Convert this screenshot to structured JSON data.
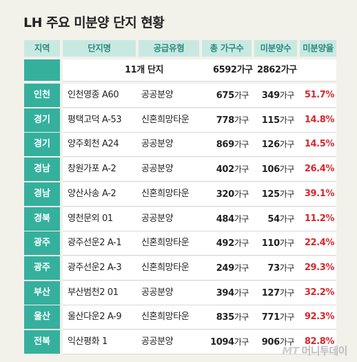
{
  "title": "LH 주요 미분양 단지 현황",
  "headers": {
    "region": "지역",
    "name": "단지명",
    "type": "공급유형",
    "total": "총 가구수",
    "unsold": "미분양수",
    "rate": "미분양율"
  },
  "summary": {
    "label": "11개 단지",
    "total": "6592가구",
    "unsold": "2862가구"
  },
  "unit": "가구",
  "rows": [
    {
      "region": "인천",
      "name": "인천영종 A60",
      "type": "공공분양",
      "total": "675",
      "unsold": "349",
      "rate": "51.7%"
    },
    {
      "region": "경기",
      "name": "평택고덕 A-53",
      "type": "신혼희망타운",
      "total": "778",
      "unsold": "115",
      "rate": "14.8%"
    },
    {
      "region": "경기",
      "name": "양주회천 A24",
      "type": "공공분양",
      "total": "869",
      "unsold": "126",
      "rate": "14.5%"
    },
    {
      "region": "경남",
      "name": "창원가포 A-2",
      "type": "공공분양",
      "total": "402",
      "unsold": "106",
      "rate": "26.4%"
    },
    {
      "region": "경남",
      "name": "양산사송 A-2",
      "type": "신혼희망타운",
      "total": "320",
      "unsold": "125",
      "rate": "39.1%"
    },
    {
      "region": "경북",
      "name": "영천문외 01",
      "type": "공공분양",
      "total": "484",
      "unsold": "54",
      "rate": "11.2%"
    },
    {
      "region": "광주",
      "name": "광주선운2 A-1",
      "type": "신혼희망타운",
      "total": "492",
      "unsold": "110",
      "rate": "22.4%"
    },
    {
      "region": "광주",
      "name": "광주선운2 A-3",
      "type": "신혼희망타운",
      "total": "249",
      "unsold": "73",
      "rate": "29.3%"
    },
    {
      "region": "부산",
      "name": "부산범천2 01",
      "type": "공공분양",
      "total": "394",
      "unsold": "127",
      "rate": "32.2%"
    },
    {
      "region": "울산",
      "name": "울산다운2 A-9",
      "type": "신혼희망타운",
      "total": "835",
      "unsold": "771",
      "rate": "92.3%"
    },
    {
      "region": "전북",
      "name": "익산평화 1",
      "type": "공공분양",
      "total": "1094",
      "unsold": "906",
      "rate": "82.8%"
    }
  ],
  "watermark": {
    "mark": "MT",
    "text": "머니투데이"
  },
  "colors": {
    "accent": "#35b09d",
    "header_bg": "#c8e9e2",
    "rate": "#d9262b",
    "background": "#f2f1ea"
  }
}
